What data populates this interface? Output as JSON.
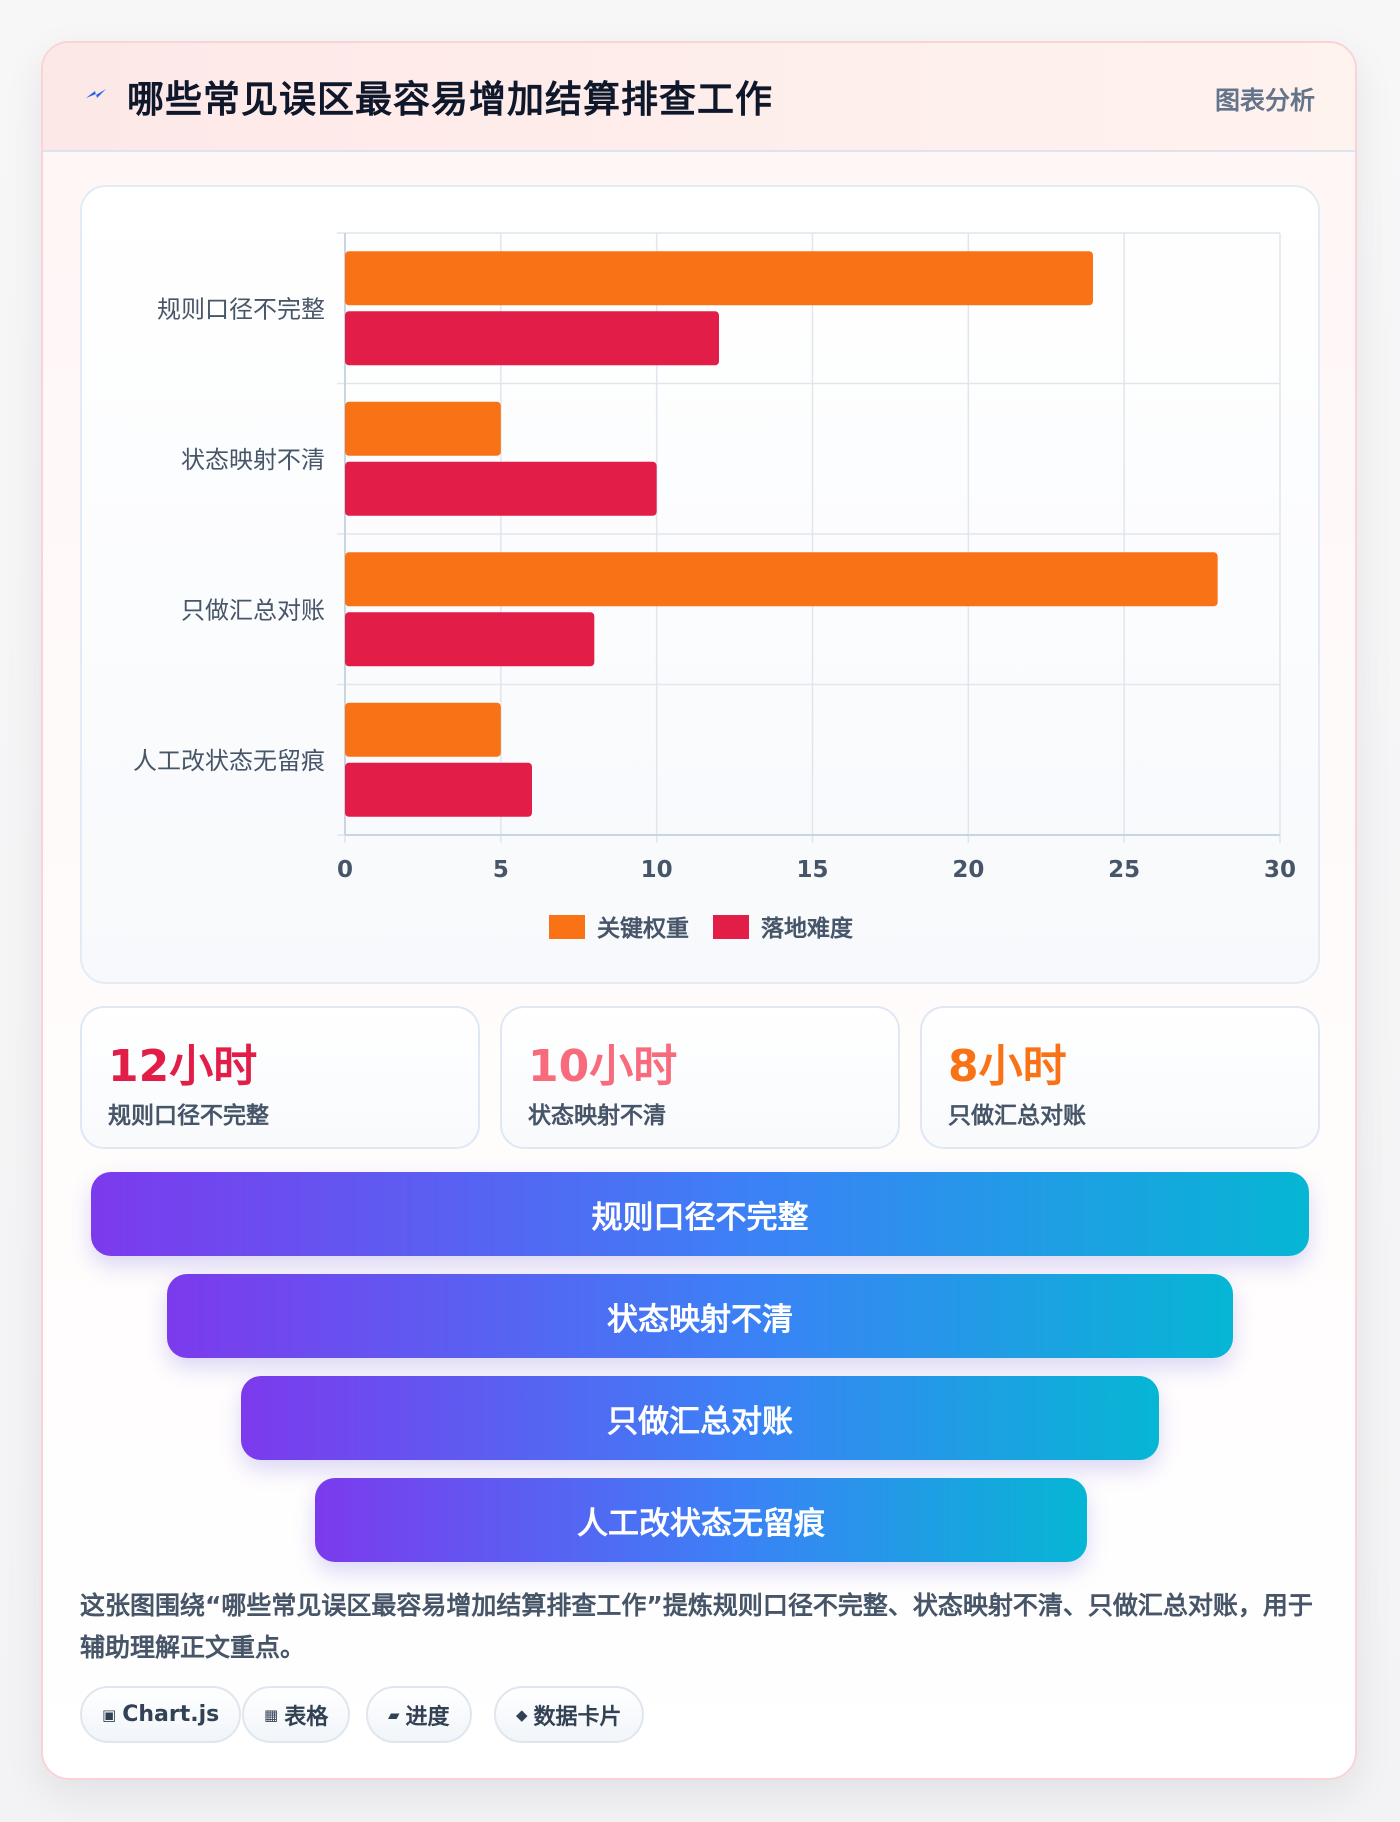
{
  "header": {
    "title": "哪些常见误区最容易增加结算排查工作",
    "tag": "图表分析",
    "icon": "lightning-icon"
  },
  "chart_data": {
    "type": "bar",
    "orientation": "horizontal",
    "categories": [
      "规则口径不完整",
      "状态映射不清",
      "只做汇总对账",
      "人工改状态无留痕"
    ],
    "series": [
      {
        "name": "关键权重",
        "color": "#f97316",
        "values": [
          24,
          5,
          28,
          5
        ]
      },
      {
        "name": "落地难度",
        "color": "#e11d48",
        "values": [
          12,
          10,
          8,
          6
        ]
      }
    ],
    "xlim": [
      0,
      30
    ],
    "xticks": [
      "0",
      "5",
      "10",
      "15",
      "20",
      "25",
      "30"
    ],
    "grid": true,
    "legend": "bottom"
  },
  "stats": [
    {
      "value": "12小时",
      "label": "规则口径不完整",
      "color": "#e11d48"
    },
    {
      "value": "10小时",
      "label": "状态映射不清",
      "color": "#f76b7d"
    },
    {
      "value": "8小时",
      "label": "只做汇总对账",
      "color": "#f97316"
    }
  ],
  "funnel": [
    "规则口径不完整",
    "状态映射不清",
    "只做汇总对账",
    "人工改状态无留痕"
  ],
  "description": "这张图围绕“哪些常见误区最容易增加结算排查工作”提炼规则口径不完整、状态映射不清、只做汇总对账，用于辅助理解正文重点。",
  "chips": [
    {
      "icon": "▣",
      "label": "Chart.js"
    },
    {
      "icon": "▦",
      "label": "表格"
    },
    {
      "icon": "▰",
      "label": "进度"
    },
    {
      "icon": "◆",
      "label": "数据卡片"
    }
  ]
}
